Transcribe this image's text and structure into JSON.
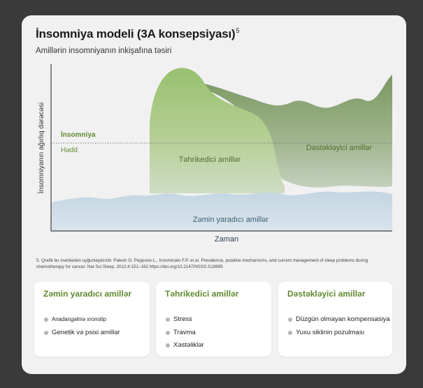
{
  "title": "İnsomniya modeli (3A konsepsiyası)",
  "title_sup": "5",
  "subtitle": "Amillərin insomniyanın inkişafına təsiri",
  "chart": {
    "y_axis_label": "İnsomniyanın ağırlıq dərəcəsi",
    "x_axis_label": "Zaman",
    "threshold_label_1": "İnsomniya",
    "threshold_label_2": "Hədd",
    "area_precipitating": "Təhrikedici amillər",
    "area_perpetuating": "Dəstəkləyici amillər",
    "area_predisposing": "Zəmin yaradıcı amillər",
    "colors": {
      "predisposing": "#c9dae4",
      "precipitating": "#8fb867",
      "perpetuating": "#7d9a66",
      "label_green": "#5e8a2f",
      "threshold": "#777777"
    }
  },
  "footnote": "5. Qrafik bu mənbədən uyğunlaşdırılıb: Palesh O. Peppone L., Innominato F.P. et al. Prevalence, putative mechanisms, and current management of sleep problems during chemotherapy for cancer. Nat Sci Sleep. 2012;4:151–162 https://doi.org/10.2147/NSSS.S18895",
  "boxes": [
    {
      "title": "Zəmin yaradıcı amillər",
      "items": [
        "Anadangəlmə xronotip",
        "Genetik və psixi amillər"
      ]
    },
    {
      "title": "Təhrikedici amillər",
      "items": [
        "Stress",
        "Travma",
        "Xəstəliklər"
      ]
    },
    {
      "title": "Dəstəkləyici amillər",
      "items": [
        "Düzgün olmayan kompensasiya",
        "Yuxu siklinin pozulması"
      ]
    }
  ]
}
